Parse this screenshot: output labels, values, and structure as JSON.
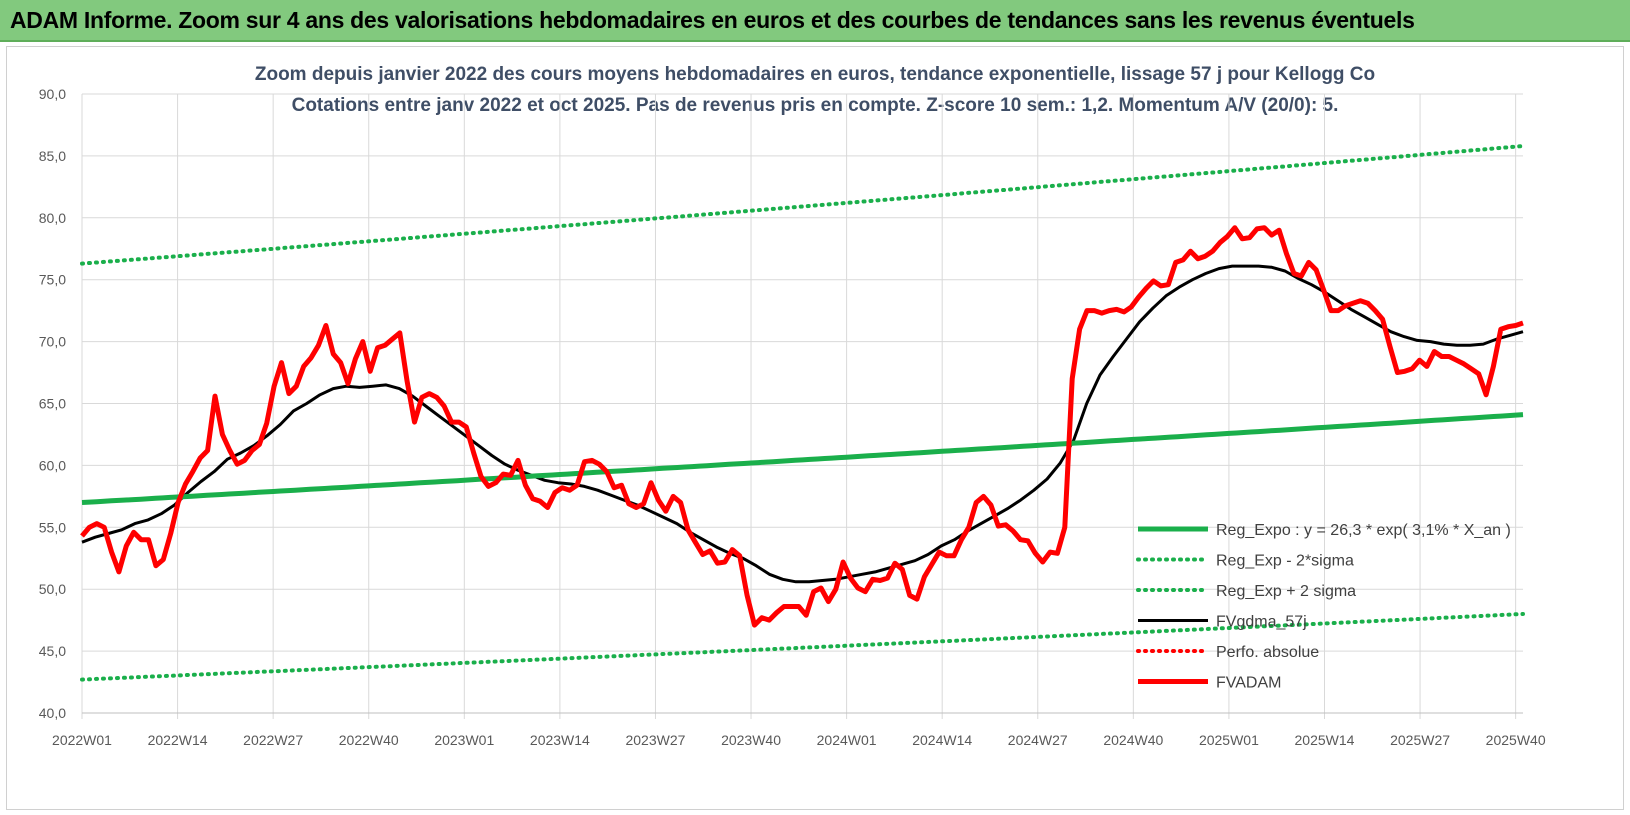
{
  "banner": {
    "title": "ADAM Informe. Zoom sur 4 ans des valorisations hebdomadaires en euros et des courbes de tendances sans les revenus éventuels"
  },
  "chart_data": {
    "type": "line",
    "title": "Zoom depuis janvier 2022 des cours moyens hebdomadaires en euros, tendance exponentielle, lissage 57 j pour Kellogg Co",
    "subtitle": "Cotations entre janv 2022 et oct 2025. Pas de revenus pris en compte. Z-score 10 sem.: 1,2. Momentum A/V (20/0): 5.",
    "ylim": [
      40,
      90
    ],
    "yticks": [
      "40,0",
      "45,0",
      "50,0",
      "55,0",
      "60,0",
      "65,0",
      "70,0",
      "75,0",
      "80,0",
      "85,0",
      "90,0"
    ],
    "xticks": [
      "2022W01",
      "2022W14",
      "2022W27",
      "2022W40",
      "2023W01",
      "2023W14",
      "2023W27",
      "2023W40",
      "2024W01",
      "2024W14",
      "2024W27",
      "2024W40",
      "2025W01",
      "2025W14",
      "2025W27",
      "2025W40"
    ],
    "grid": true,
    "legend_position": "bottom-right",
    "x_points": 197,
    "series": [
      {
        "name": "Reg_Expo : y = 26,3 * exp( 3,1% * X_an )",
        "color": "#1aaf4b",
        "style": "solid-thick",
        "values": [
          57.0,
          64.1
        ]
      },
      {
        "name": "Reg_Exp - 2*sigma",
        "color": "#1aaf4b",
        "style": "dotted",
        "values": [
          42.7,
          48.0
        ]
      },
      {
        "name": "Reg_Exp + 2 sigma",
        "color": "#1aaf4b",
        "style": "dotted",
        "values": [
          76.3,
          85.8
        ]
      },
      {
        "name": "FVgdma_57j",
        "color": "#000000",
        "style": "solid",
        "values": [
          53.8,
          54.2,
          54.5,
          54.8,
          55.3,
          55.6,
          56.1,
          56.8,
          57.8,
          58.7,
          59.5,
          60.5,
          61.0,
          61.6,
          62.4,
          63.3,
          64.4,
          65.0,
          65.7,
          66.2,
          66.4,
          66.3,
          66.4,
          66.5,
          66.2,
          65.6,
          64.8,
          64.0,
          63.2,
          62.4,
          61.6,
          60.8,
          60.1,
          59.6,
          59.2,
          58.8,
          58.6,
          58.5,
          58.3,
          58.0,
          57.6,
          57.2,
          56.8,
          56.3,
          55.8,
          55.3,
          54.6,
          54.0,
          53.4,
          52.9,
          52.5,
          51.9,
          51.2,
          50.8,
          50.6,
          50.6,
          50.7,
          50.8,
          51.0,
          51.2,
          51.4,
          51.7,
          52.0,
          52.3,
          52.8,
          53.5,
          54.0,
          54.7,
          55.3,
          55.9,
          56.5,
          57.2,
          58.0,
          58.9,
          60.2,
          62.0,
          65.0,
          67.3,
          68.8,
          70.2,
          71.6,
          72.7,
          73.7,
          74.4,
          75.0,
          75.5,
          75.9,
          76.1,
          76.1,
          76.1,
          76.0,
          75.7,
          75.1,
          74.6,
          74.0,
          73.3,
          72.6,
          72.0,
          71.4,
          70.8,
          70.4,
          70.1,
          70.0,
          69.8,
          69.7,
          69.7,
          69.8,
          70.2,
          70.5,
          70.8
        ]
      },
      {
        "name": "Perfo. absolue",
        "color": "#ff0000",
        "style": "dotted",
        "values": []
      },
      {
        "name": "FVADAM",
        "color": "#ff0000",
        "style": "solid-thick",
        "values": [
          54.3,
          55.0,
          55.3,
          55.0,
          53.0,
          51.4,
          53.5,
          54.6,
          54.0,
          54.0,
          51.9,
          52.4,
          54.5,
          57.0,
          58.5,
          59.5,
          60.6,
          61.2,
          65.6,
          62.5,
          61.2,
          60.1,
          60.4,
          61.2,
          61.7,
          63.4,
          66.4,
          68.3,
          65.8,
          66.4,
          68.0,
          68.7,
          69.7,
          71.3,
          69.0,
          68.3,
          66.6,
          68.6,
          70.0,
          67.6,
          69.5,
          69.7,
          70.2,
          70.7,
          66.8,
          63.5,
          65.5,
          65.8,
          65.5,
          64.8,
          63.5,
          63.5,
          63.1,
          61.0,
          59.1,
          58.3,
          58.6,
          59.3,
          59.2,
          60.4,
          58.4,
          57.3,
          57.1,
          56.6,
          57.8,
          58.2,
          58.0,
          58.4,
          60.3,
          60.4,
          60.1,
          59.5,
          58.2,
          58.4,
          56.9,
          56.6,
          56.9,
          58.6,
          57.2,
          56.3,
          57.5,
          57.0,
          54.8,
          53.8,
          52.8,
          53.1,
          52.1,
          52.2,
          53.2,
          52.7,
          49.5,
          47.1,
          47.7,
          47.5,
          48.1,
          48.6,
          48.6,
          48.6,
          47.9,
          49.8,
          50.1,
          49.0,
          50.0,
          52.2,
          50.9,
          50.1,
          49.8,
          50.8,
          50.7,
          50.9,
          52.1,
          51.6,
          49.5,
          49.2,
          51.0,
          52.0,
          53.0,
          52.7,
          52.7,
          54.0,
          55.0,
          57.0,
          57.5,
          56.8,
          55.1,
          55.2,
          54.7,
          54.0,
          53.9,
          52.9,
          52.2,
          53.0,
          52.9,
          55.0,
          67.0,
          71.0,
          72.5,
          72.5,
          72.3,
          72.5,
          72.6,
          72.4,
          72.8,
          73.6,
          74.3,
          74.9,
          74.5,
          74.6,
          76.4,
          76.6,
          77.3,
          76.7,
          76.9,
          77.3,
          78.0,
          78.5,
          79.2,
          78.3,
          78.4,
          79.1,
          79.2,
          78.6,
          79.0,
          77.1,
          75.5,
          75.3,
          76.4,
          75.8,
          74.2,
          72.5,
          72.5,
          72.9,
          73.1,
          73.3,
          73.1,
          72.5,
          71.8,
          69.6,
          67.5,
          67.6,
          67.8,
          68.5,
          68.0,
          69.2,
          68.8,
          68.8,
          68.5,
          68.2,
          67.8,
          67.4,
          65.7,
          68.0,
          71.0,
          71.2,
          71.3,
          71.5
        ]
      }
    ]
  }
}
